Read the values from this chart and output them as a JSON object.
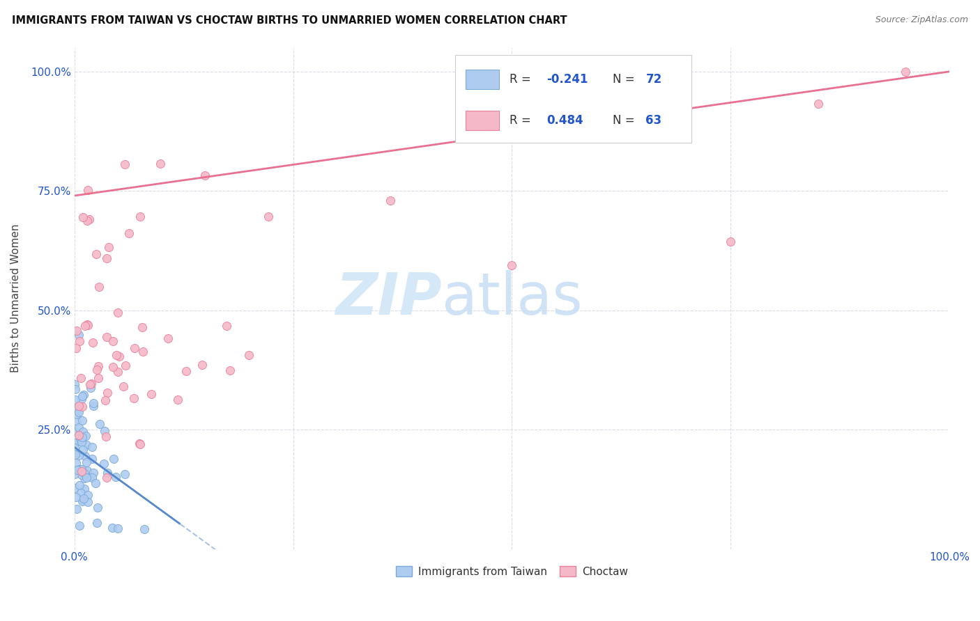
{
  "title": "IMMIGRANTS FROM TAIWAN VS CHOCTAW BIRTHS TO UNMARRIED WOMEN CORRELATION CHART",
  "source": "Source: ZipAtlas.com",
  "ylabel": "Births to Unmarried Women",
  "legend_label1": "Immigrants from Taiwan",
  "legend_label2": "Choctaw",
  "R1": -0.241,
  "N1": 72,
  "R2": 0.484,
  "N2": 63,
  "color_blue_fill": "#aeccf0",
  "color_blue_edge": "#7aaad8",
  "color_pink_fill": "#f5b8c8",
  "color_pink_edge": "#e8809a",
  "color_blue_line": "#5588cc",
  "color_pink_line": "#e87090",
  "color_blue_text": "#2255cc",
  "grid_color": "#ccccdd",
  "watermark_color": "#d5e8f8",
  "xlim": [
    0,
    100
  ],
  "ylim": [
    0,
    105
  ],
  "seed": 12
}
